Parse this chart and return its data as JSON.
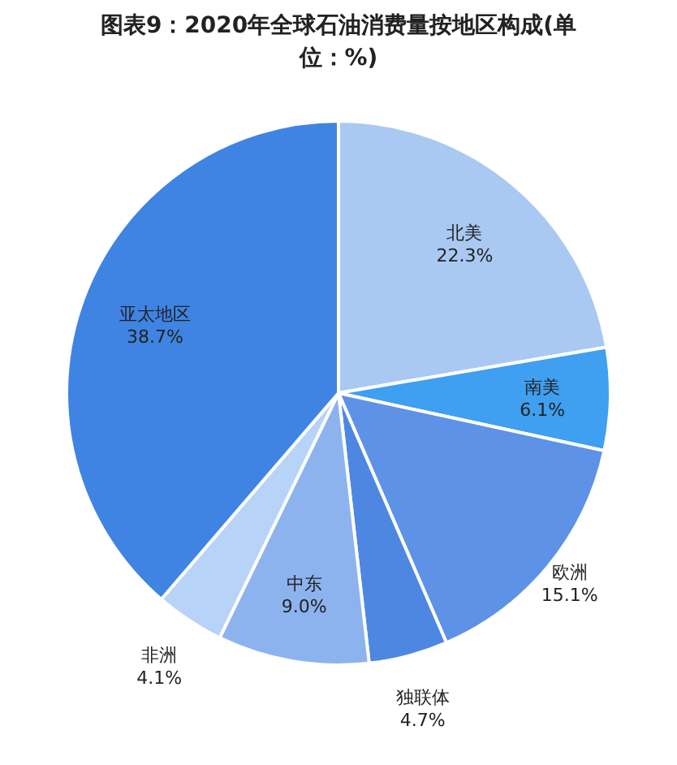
{
  "chart_data": {
    "type": "pie",
    "title": "图表9：2020年全球石油消费量按地区构成(单位：%)",
    "categories": [
      "北美",
      "南美",
      "欧洲",
      "独联体",
      "中东",
      "非洲",
      "亚太地区"
    ],
    "values": [
      22.3,
      6.1,
      15.1,
      4.7,
      9.0,
      4.1,
      38.7
    ],
    "value_labels": [
      "22.3%",
      "6.1%",
      "15.1%",
      "4.7%",
      "9.0%",
      "4.1%",
      "38.7%"
    ],
    "colors": [
      "#a9c9f2",
      "#3f9ff0",
      "#5d92e6",
      "#4d87e2",
      "#8db3ef",
      "#b7d3f7",
      "#3f84e3"
    ],
    "legend": false
  }
}
